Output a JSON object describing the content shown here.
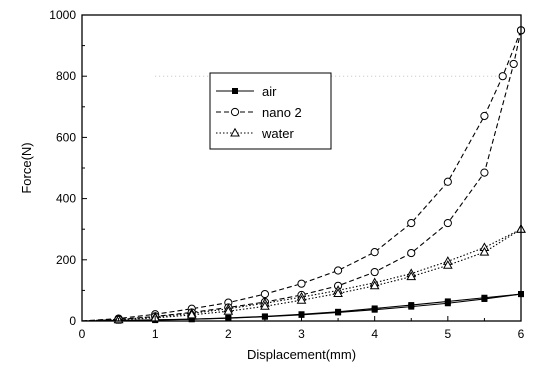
{
  "chart_data": {
    "type": "line",
    "title": "",
    "xlabel": "Displacement(mm)",
    "ylabel": "Force(N)",
    "xlim": [
      0,
      6
    ],
    "ylim": [
      0,
      1000
    ],
    "xticks": [
      "0",
      "1",
      "2",
      "3",
      "4",
      "5",
      "6"
    ],
    "yticks": [
      "0",
      "200",
      "400",
      "600",
      "800",
      "1000"
    ],
    "grid": "dotted gridlines at 800 and 1000 (partial)",
    "legend_position": "top-center",
    "series": [
      {
        "name": "air",
        "marker": "filled-square",
        "line": "solid",
        "color": "#000000",
        "branches": [
          {
            "x": [
              0,
              0.5,
              1.0,
              1.5,
              2.0,
              2.5,
              3.0,
              3.5,
              4.0,
              4.5,
              5.0,
              5.5,
              6.0
            ],
            "y": [
              0,
              2,
              4,
              6,
              9,
              14,
              20,
              28,
              37,
              47,
              58,
              72,
              88
            ]
          },
          {
            "x": [
              6.0,
              5.5,
              5.0,
              4.5,
              4.0,
              3.5,
              3.0,
              2.5,
              2.0,
              1.5,
              1.0,
              0.5,
              0
            ],
            "y": [
              88,
              76,
              64,
              52,
              41,
              30,
              22,
              15,
              10,
              6,
              3,
              1,
              0
            ]
          }
        ]
      },
      {
        "name": "nano 2",
        "marker": "open-circle",
        "line": "dashed",
        "color": "#000000",
        "branches": [
          {
            "x": [
              0,
              0.5,
              1.0,
              1.5,
              2.0,
              2.5,
              3.0,
              3.5,
              4.0,
              4.5,
              5.0,
              5.5,
              5.75,
              6.0
            ],
            "y": [
              0,
              8,
              22,
              40,
              60,
              88,
              122,
              165,
              225,
              320,
              455,
              670,
              800,
              950
            ]
          },
          {
            "x": [
              6.0,
              5.9,
              5.5,
              5.0,
              4.5,
              4.0,
              3.5,
              3.0,
              2.5,
              2.0,
              1.5,
              1.0,
              0.5,
              0
            ],
            "y": [
              950,
              840,
              485,
              320,
              222,
              160,
              115,
              85,
              62,
              44,
              28,
              15,
              5,
              0
            ]
          }
        ]
      },
      {
        "name": "water",
        "marker": "open-triangle",
        "line": "dotted",
        "color": "#000000",
        "branches": [
          {
            "x": [
              0,
              0.5,
              1.0,
              1.5,
              2.0,
              2.5,
              3.0,
              3.5,
              4.0,
              4.5,
              5.0,
              5.5,
              6.0
            ],
            "y": [
              0,
              5,
              13,
              25,
              40,
              58,
              78,
              100,
              125,
              155,
              195,
              240,
              300
            ]
          },
          {
            "x": [
              6.0,
              5.5,
              5.0,
              4.5,
              4.0,
              3.5,
              3.0,
              2.5,
              2.0,
              1.5,
              1.0,
              0.5,
              0
            ],
            "y": [
              300,
              225,
              182,
              145,
              115,
              90,
              68,
              48,
              32,
              20,
              10,
              4,
              0
            ]
          }
        ]
      }
    ]
  }
}
